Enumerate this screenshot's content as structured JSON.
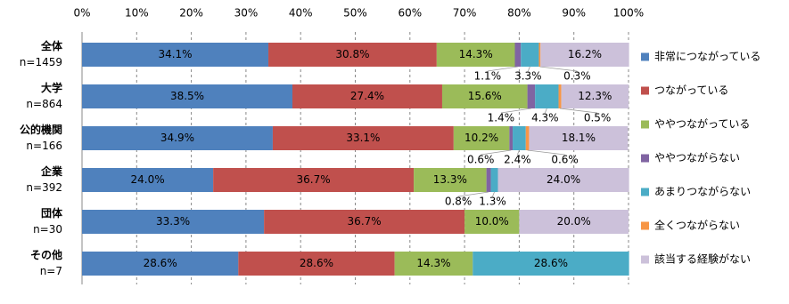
{
  "chart_data": {
    "type": "stacked-bar-horizontal",
    "categories": [
      "全体",
      "大学",
      "公的機関",
      "企業",
      "団体",
      "その他"
    ],
    "category_counts": [
      "n=1459",
      "n=864",
      "n=166",
      "n=392",
      "n=30",
      "n=7"
    ],
    "series": [
      {
        "name": "非常につながっている",
        "color": "#4f81bd",
        "values": [
          34.1,
          38.5,
          34.9,
          24.0,
          33.3,
          28.6
        ],
        "value_labels": [
          "34.1%",
          "38.5%",
          "34.9%",
          "24.0%",
          "33.3%",
          "28.6%"
        ]
      },
      {
        "name": "つながっている",
        "color": "#c0504d",
        "values": [
          30.8,
          27.4,
          33.1,
          36.7,
          36.7,
          28.6
        ],
        "value_labels": [
          "30.8%",
          "27.4%",
          "33.1%",
          "36.7%",
          "36.7%",
          "28.6%"
        ]
      },
      {
        "name": "ややつながっている",
        "color": "#9bbb59",
        "values": [
          14.3,
          15.6,
          10.2,
          13.3,
          10.0,
          14.3
        ],
        "value_labels": [
          "14.3%",
          "15.6%",
          "10.2%",
          "13.3%",
          "10.0%",
          "14.3%"
        ]
      },
      {
        "name": "ややつながらない",
        "color": "#8064a2",
        "values": [
          1.1,
          1.4,
          0.6,
          0.8,
          0,
          0
        ],
        "value_labels": [
          "1.1%",
          "1.4%",
          "0.6%",
          "0.8%",
          null,
          null
        ]
      },
      {
        "name": "あまりつながらない",
        "color": "#4bacc6",
        "values": [
          3.3,
          4.3,
          2.4,
          1.3,
          0,
          28.6
        ],
        "value_labels": [
          "3.3%",
          "4.3%",
          "2.4%",
          "1.3%",
          null,
          "28.6%"
        ]
      },
      {
        "name": "全くつながらない",
        "color": "#f79646",
        "values": [
          0.3,
          0.5,
          0.6,
          0,
          0,
          0
        ],
        "value_labels": [
          "0.3%",
          "0.5%",
          "0.6%",
          null,
          null,
          null
        ]
      },
      {
        "name": "該当する経験がない",
        "color": "#ccc1da",
        "values": [
          16.2,
          12.3,
          18.1,
          24.0,
          20.0,
          0
        ],
        "value_labels": [
          "16.2%",
          "12.3%",
          "18.1%",
          "24.0%",
          "20.0%",
          null
        ]
      }
    ],
    "xlim": [
      0,
      100
    ],
    "xticks": [
      {
        "value": 0,
        "label": "0%"
      },
      {
        "value": 10,
        "label": "10%"
      },
      {
        "value": 20,
        "label": "20%"
      },
      {
        "value": 30,
        "label": "30%"
      },
      {
        "value": 40,
        "label": "40%"
      },
      {
        "value": 50,
        "label": "50%"
      },
      {
        "value": 60,
        "label": "60%"
      },
      {
        "value": 70,
        "label": "70%"
      },
      {
        "value": 80,
        "label": "80%"
      },
      {
        "value": 90,
        "label": "90%"
      },
      {
        "value": 100,
        "label": "100%"
      }
    ],
    "grid": true,
    "legend": "right"
  }
}
